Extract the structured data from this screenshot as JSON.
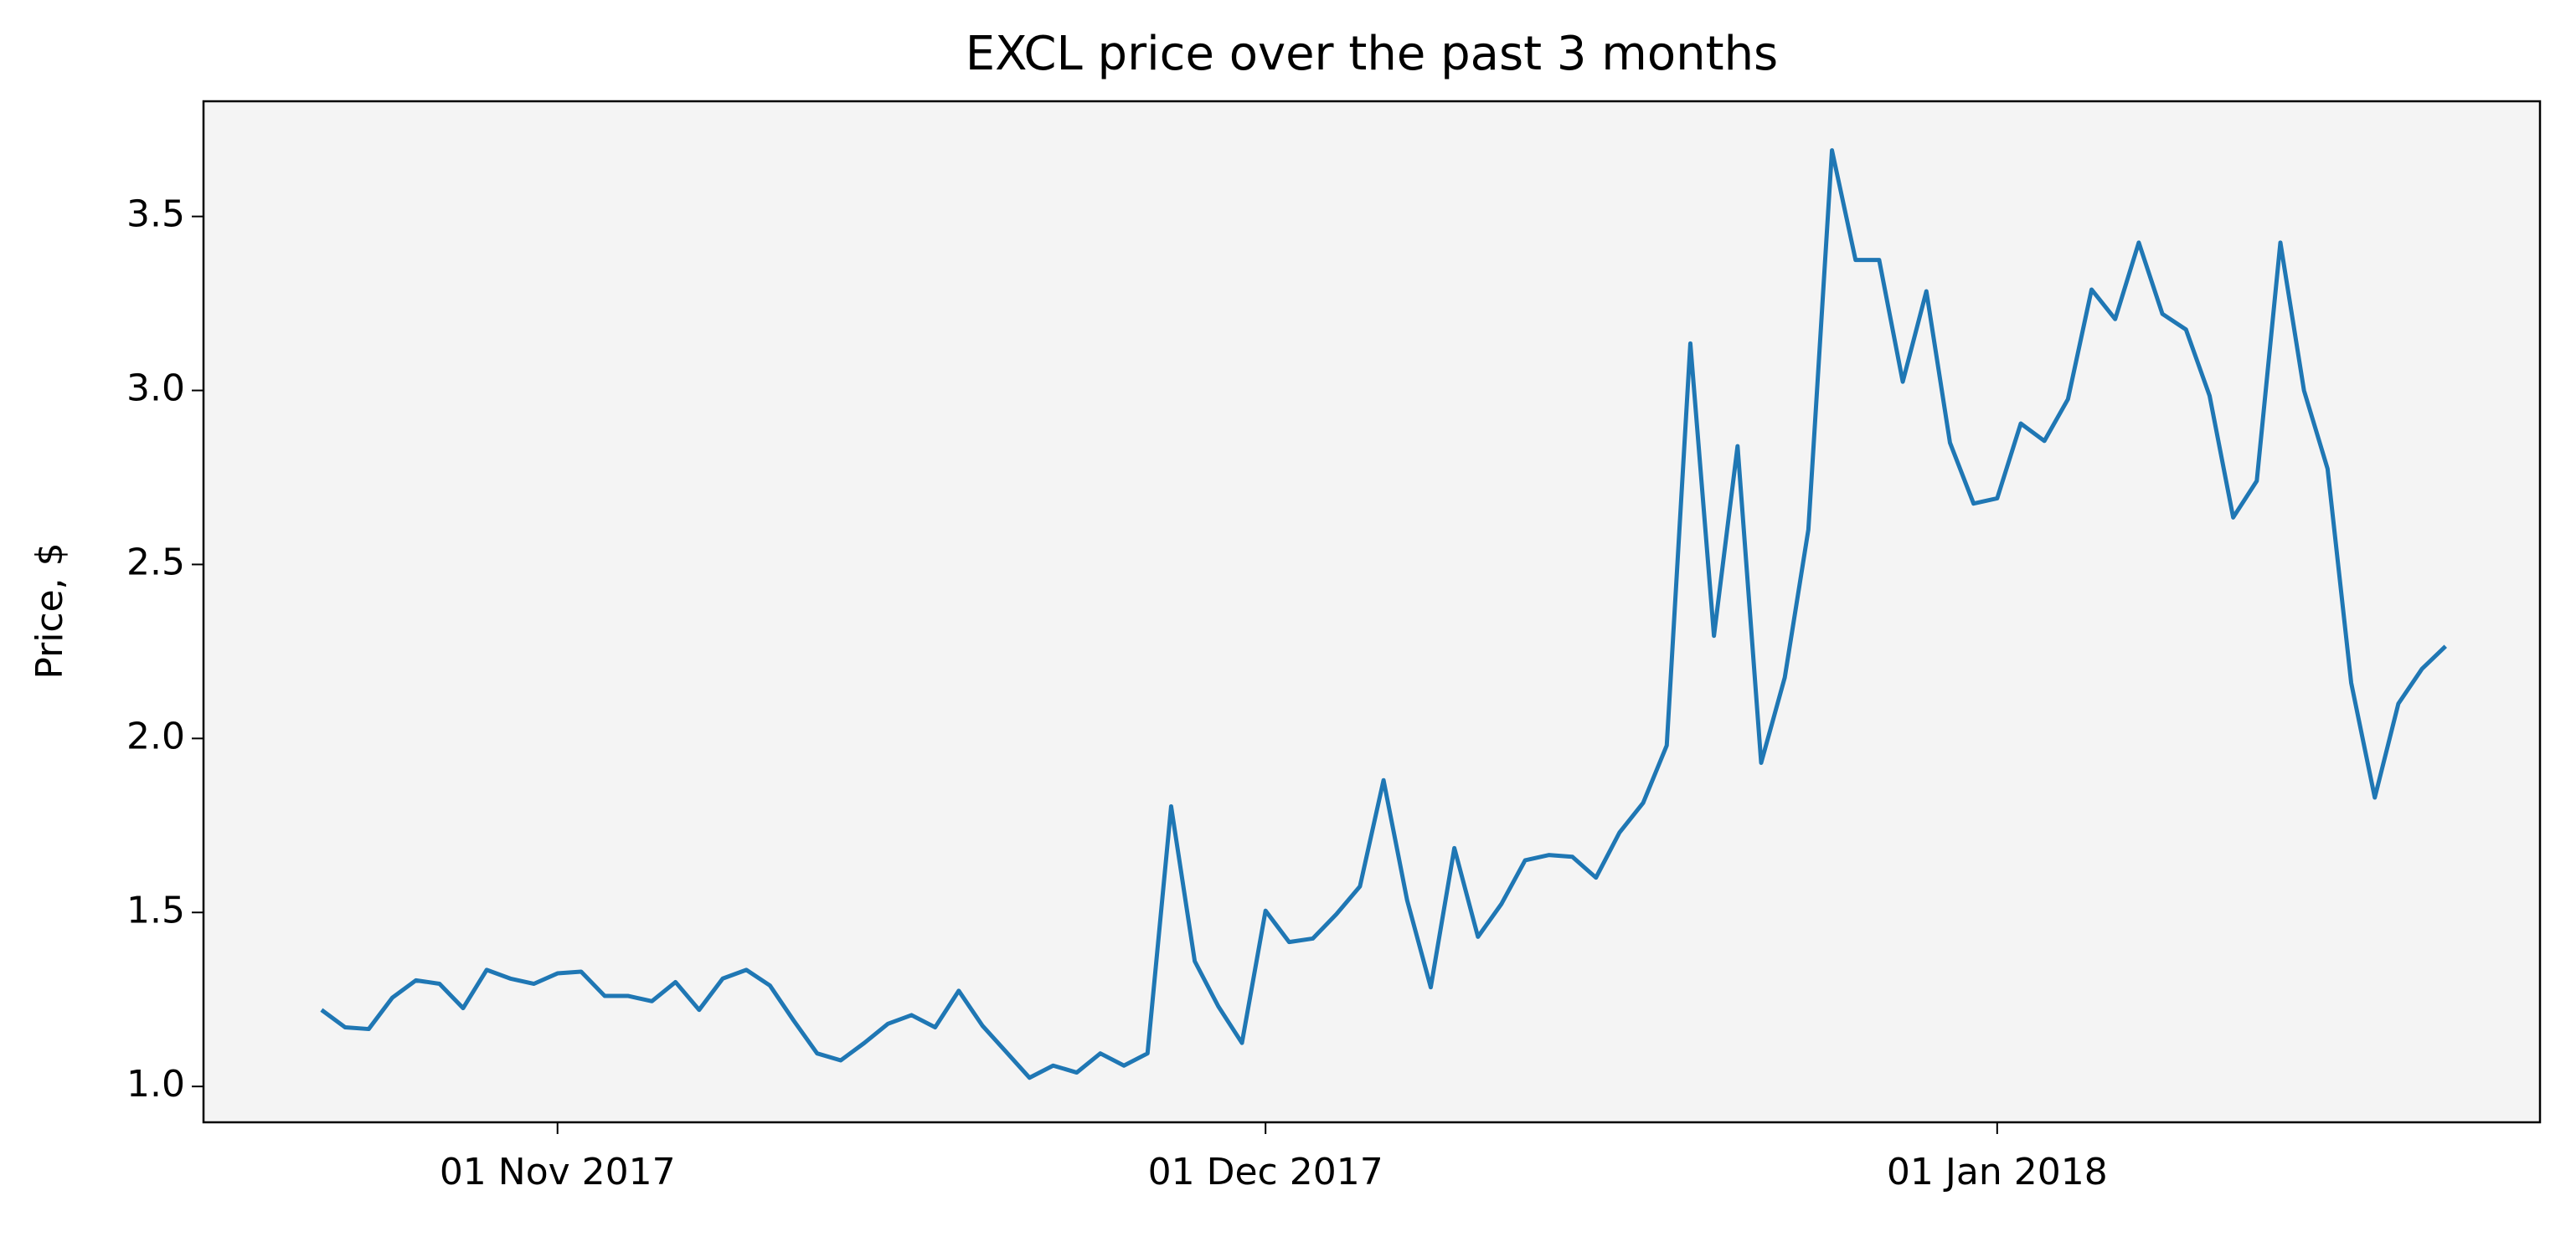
{
  "chart_data": {
    "type": "line",
    "title": "EXCL price over the past 3 months",
    "y_label": "Price, $",
    "x": [
      "2017-10-22",
      "2017-10-23",
      "2017-10-24",
      "2017-10-25",
      "2017-10-26",
      "2017-10-27",
      "2017-10-28",
      "2017-10-29",
      "2017-10-30",
      "2017-10-31",
      "2017-11-01",
      "2017-11-02",
      "2017-11-03",
      "2017-11-04",
      "2017-11-05",
      "2017-11-06",
      "2017-11-07",
      "2017-11-08",
      "2017-11-09",
      "2017-11-10",
      "2017-11-11",
      "2017-11-12",
      "2017-11-13",
      "2017-11-14",
      "2017-11-15",
      "2017-11-16",
      "2017-11-17",
      "2017-11-18",
      "2017-11-19",
      "2017-11-20",
      "2017-11-21",
      "2017-11-22",
      "2017-11-23",
      "2017-11-24",
      "2017-11-25",
      "2017-11-26",
      "2017-11-27",
      "2017-11-28",
      "2017-11-29",
      "2017-11-30",
      "2017-12-01",
      "2017-12-02",
      "2017-12-03",
      "2017-12-04",
      "2017-12-05",
      "2017-12-06",
      "2017-12-07",
      "2017-12-08",
      "2017-12-09",
      "2017-12-10",
      "2017-12-11",
      "2017-12-12",
      "2017-12-13",
      "2017-12-14",
      "2017-12-15",
      "2017-12-16",
      "2017-12-17",
      "2017-12-18",
      "2017-12-19",
      "2017-12-20",
      "2017-12-21",
      "2017-12-22",
      "2017-12-23",
      "2017-12-24",
      "2017-12-25",
      "2017-12-26",
      "2017-12-27",
      "2017-12-28",
      "2017-12-29",
      "2017-12-30",
      "2017-12-31",
      "2018-01-01",
      "2018-01-02",
      "2018-01-03",
      "2018-01-04",
      "2018-01-05",
      "2018-01-06",
      "2018-01-07",
      "2018-01-08",
      "2018-01-09",
      "2018-01-10",
      "2018-01-11",
      "2018-01-12",
      "2018-01-13",
      "2018-01-14",
      "2018-01-15",
      "2018-01-16",
      "2018-01-17",
      "2018-01-18",
      "2018-01-19",
      "2018-01-20"
    ],
    "values": [
      1.22,
      1.17,
      1.165,
      1.255,
      1.305,
      1.295,
      1.225,
      1.335,
      1.31,
      1.295,
      1.325,
      1.33,
      1.26,
      1.26,
      1.245,
      1.3,
      1.22,
      1.31,
      1.335,
      1.29,
      1.19,
      1.095,
      1.075,
      1.125,
      1.18,
      1.205,
      1.17,
      1.275,
      1.175,
      1.1,
      1.025,
      1.06,
      1.04,
      1.095,
      1.06,
      1.095,
      1.805,
      1.36,
      1.23,
      1.125,
      1.505,
      1.415,
      1.425,
      1.495,
      1.575,
      1.88,
      1.535,
      1.285,
      1.685,
      1.43,
      1.525,
      1.65,
      1.665,
      1.66,
      1.6,
      1.73,
      1.815,
      1.98,
      3.135,
      2.295,
      2.84,
      1.93,
      2.175,
      2.6,
      3.69,
      3.375,
      3.375,
      3.025,
      3.285,
      2.85,
      2.675,
      2.69,
      2.905,
      2.855,
      2.975,
      3.29,
      3.205,
      3.425,
      3.22,
      3.175,
      2.985,
      2.635,
      2.74,
      3.425,
      3.0,
      2.775,
      2.16,
      1.83,
      2.1,
      2.2,
      2.265
    ],
    "color": "#1f77b4",
    "background": "#f4f4f4",
    "xlim": [
      "2017-10-17",
      "2018-01-24"
    ],
    "xticks": [
      {
        "value": "2017-11-01",
        "label": "01 Nov 2017"
      },
      {
        "value": "2017-12-01",
        "label": "01 Dec 2017"
      },
      {
        "value": "2018-01-01",
        "label": "01 Jan 2018"
      }
    ],
    "ylim": [
      0.897,
      3.831
    ],
    "yticks": [
      {
        "value": 1,
        "label": "1.0"
      },
      {
        "value": 1.5,
        "label": "1.5"
      },
      {
        "value": 2,
        "label": "2.0"
      },
      {
        "value": 2.5,
        "label": "2.5"
      },
      {
        "value": 3,
        "label": "3.0"
      },
      {
        "value": 3.5,
        "label": "3.5"
      }
    ],
    "grid": false
  }
}
